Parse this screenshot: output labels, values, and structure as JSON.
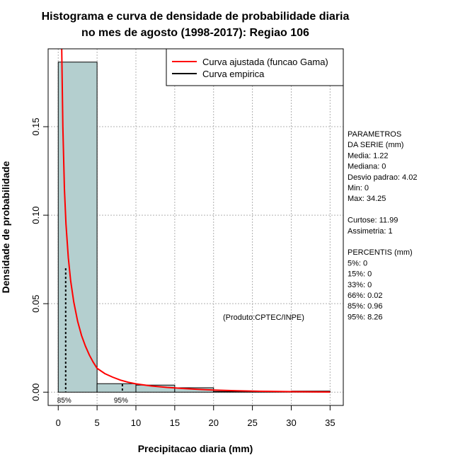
{
  "title_line1": "Histograma e curva de densidade de probabilidade diaria",
  "title_line2": "no mes de agosto (1998-2017): Regiao 106",
  "credit": "(Produto:CPTEC/INPE)",
  "colors": {
    "bar_fill": "#b4cfcf",
    "fit_curve": "#ff0000",
    "empirical_curve": "#000000",
    "grid": "#b0b0b0"
  },
  "stats_panel": {
    "lines": [
      "PARAMETROS",
      "DA SERIE (mm)",
      "  Media: 1.22",
      "  Mediana: 0",
      "  Desvio padrao: 4.02",
      "  Min: 0",
      "  Max: 34.25",
      "",
      "Curtose: 11.99",
      "Assimetria: 1",
      "",
      "PERCENTIS (mm)",
      "  5%: 0",
      "  15%: 0",
      "  33%: 0",
      "  66%: 0.02",
      "  85%: 0.96",
      "  95%: 8.26"
    ]
  },
  "chart_data": {
    "type": "histogram",
    "title": "Histograma e curva de densidade de probabilidade diaria no mes de agosto (1998-2017): Regiao 106",
    "xlabel": "Precipitacao diaria (mm)",
    "ylabel": "Densidade de probabilidade",
    "xlim": [
      -1.3,
      36.7
    ],
    "ylim": [
      -0.0075,
      0.194
    ],
    "x_ticks": [
      0,
      5,
      10,
      15,
      20,
      25,
      30,
      35
    ],
    "y_ticks": [
      0.0,
      0.05,
      0.1,
      0.15
    ],
    "y_tick_labels": [
      "0.00",
      "0.05",
      "0.10",
      "0.15"
    ],
    "grid": true,
    "bins": [
      {
        "from": 0,
        "to": 5,
        "density": 0.1865
      },
      {
        "from": 5,
        "to": 10,
        "density": 0.0048
      },
      {
        "from": 10,
        "to": 15,
        "density": 0.004
      },
      {
        "from": 15,
        "to": 20,
        "density": 0.0025
      },
      {
        "from": 20,
        "to": 25,
        "density": 0.0004
      },
      {
        "from": 25,
        "to": 30,
        "density": 0.0002
      },
      {
        "from": 30,
        "to": 35,
        "density": 0.0006
      }
    ],
    "fitted_curve": {
      "name": "Curva ajustada (funcao Gama)",
      "x": [
        0.45,
        0.6,
        0.8,
        1.0,
        1.3,
        1.6,
        2.0,
        2.5,
        3.0,
        3.5,
        4.0,
        4.5,
        5.0,
        6.0,
        7.0,
        8.0,
        9.0,
        10.0,
        12.0,
        14.0,
        16.0,
        18.0,
        20.0,
        23.0,
        26.0,
        30.0,
        35.0
      ],
      "y": [
        0.194,
        0.15,
        0.115,
        0.095,
        0.076,
        0.063,
        0.051,
        0.04,
        0.032,
        0.026,
        0.021,
        0.017,
        0.0135,
        0.0105,
        0.0085,
        0.0068,
        0.0056,
        0.0047,
        0.0035,
        0.0027,
        0.0021,
        0.0016,
        0.0012,
        0.0008,
        0.0005,
        0.0003,
        0.0001
      ]
    },
    "empirical_curve": {
      "name": "Curva empirica"
    },
    "percentile_markers": [
      {
        "label": "85%",
        "x": 0.96,
        "y": 0.07
      },
      {
        "label": "95%",
        "x": 8.26,
        "y": 0.0045
      }
    ],
    "legend": {
      "position": "top-right",
      "entries": [
        "Curva ajustada (funcao Gama)",
        "Curva empirica"
      ]
    }
  }
}
